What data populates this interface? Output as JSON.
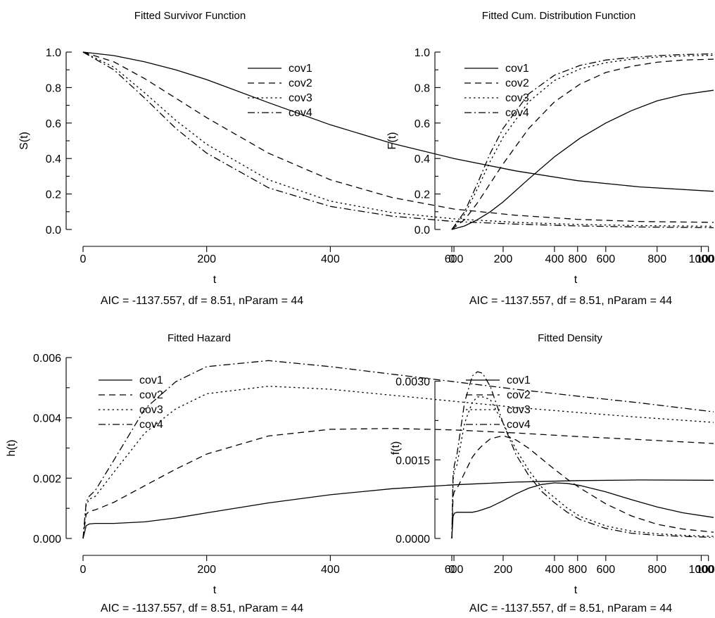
{
  "colors": {
    "background": "#ffffff",
    "ink": "#000000"
  },
  "chart_data": [
    {
      "type": "line",
      "title": "Fitted Survivor Function",
      "xlabel": "t",
      "ylabel": "S(t)",
      "footer": "AIC = -1137.557,   df = 8.51,   nParam = 44",
      "xlim": [
        0,
        1020
      ],
      "ylim": [
        0,
        1
      ],
      "xticks": [
        0,
        200,
        400,
        600,
        800,
        1000
      ],
      "yticks": [
        0,
        0.2,
        0.4,
        0.6,
        0.8,
        1.0
      ],
      "ytick_labels": [
        "0.0",
        "0.2",
        "0.4",
        "0.6",
        "0.8",
        "1.0"
      ],
      "grid": false,
      "legend": "top-right",
      "x": [
        0,
        50,
        100,
        150,
        200,
        300,
        400,
        500,
        600,
        700,
        800,
        900,
        1020
      ],
      "series": [
        {
          "name": "cov1",
          "dash": "solid",
          "values": [
            1.0,
            0.98,
            0.945,
            0.9,
            0.845,
            0.715,
            0.59,
            0.485,
            0.4,
            0.33,
            0.275,
            0.24,
            0.215
          ]
        },
        {
          "name": "cov2",
          "dash": "dash",
          "values": [
            1.0,
            0.945,
            0.85,
            0.74,
            0.63,
            0.43,
            0.28,
            0.18,
            0.115,
            0.08,
            0.057,
            0.045,
            0.04
          ]
        },
        {
          "name": "cov3",
          "dash": "dot",
          "values": [
            1.0,
            0.915,
            0.77,
            0.615,
            0.48,
            0.28,
            0.16,
            0.095,
            0.06,
            0.04,
            0.028,
            0.022,
            0.018
          ]
        },
        {
          "name": "cov4",
          "dash": "dashdot",
          "values": [
            1.0,
            0.9,
            0.74,
            0.57,
            0.43,
            0.235,
            0.13,
            0.075,
            0.045,
            0.03,
            0.02,
            0.014,
            0.01
          ]
        }
      ]
    },
    {
      "type": "line",
      "title": "Fitted Cum. Distribution Function",
      "xlabel": "t",
      "ylabel": "F(t)",
      "footer": "AIC = -1137.557,   df = 8.51,   nParam = 44",
      "xlim": [
        0,
        1020
      ],
      "ylim": [
        0,
        1
      ],
      "xticks": [
        0,
        200,
        400,
        600,
        800,
        1000
      ],
      "yticks": [
        0,
        0.2,
        0.4,
        0.6,
        0.8,
        1.0
      ],
      "ytick_labels": [
        "0.0",
        "0.2",
        "0.4",
        "0.6",
        "0.8",
        "1.0"
      ],
      "grid": false,
      "legend": "top-left",
      "x": [
        0,
        50,
        100,
        150,
        200,
        300,
        400,
        500,
        600,
        700,
        800,
        900,
        1020
      ],
      "series": [
        {
          "name": "cov1",
          "dash": "solid",
          "values": [
            0.0,
            0.02,
            0.055,
            0.1,
            0.155,
            0.285,
            0.41,
            0.515,
            0.6,
            0.67,
            0.725,
            0.76,
            0.785
          ]
        },
        {
          "name": "cov2",
          "dash": "dash",
          "values": [
            0.0,
            0.055,
            0.15,
            0.26,
            0.37,
            0.57,
            0.72,
            0.82,
            0.885,
            0.92,
            0.943,
            0.955,
            0.96
          ]
        },
        {
          "name": "cov3",
          "dash": "dot",
          "values": [
            0.0,
            0.085,
            0.23,
            0.385,
            0.52,
            0.72,
            0.84,
            0.905,
            0.94,
            0.96,
            0.972,
            0.978,
            0.982
          ]
        },
        {
          "name": "cov4",
          "dash": "dashdot",
          "values": [
            0.0,
            0.1,
            0.26,
            0.43,
            0.57,
            0.765,
            0.87,
            0.925,
            0.955,
            0.97,
            0.98,
            0.986,
            0.99
          ]
        }
      ]
    },
    {
      "type": "line",
      "title": "Fitted Hazard",
      "xlabel": "t",
      "ylabel": "h(t)",
      "footer": "AIC = -1137.557,   df = 8.51,   nParam = 44",
      "xlim": [
        0,
        1020
      ],
      "ylim": [
        0,
        0.006
      ],
      "xticks": [
        0,
        200,
        400,
        600,
        800,
        1000
      ],
      "yticks": [
        0,
        0.002,
        0.004,
        0.006
      ],
      "ytick_labels": [
        "0.000",
        "0.002",
        "0.004",
        "0.006"
      ],
      "grid": false,
      "legend": "top-left",
      "x": [
        0,
        5,
        10,
        20,
        50,
        100,
        150,
        200,
        300,
        400,
        500,
        600,
        700,
        800,
        900,
        1020
      ],
      "series": [
        {
          "name": "cov1",
          "dash": "solid",
          "values": [
            0.0,
            0.00042,
            0.00048,
            0.0005,
            0.0005,
            0.00055,
            0.00068,
            0.00085,
            0.00118,
            0.00145,
            0.00165,
            0.00178,
            0.00187,
            0.00192,
            0.00194,
            0.00193
          ]
        },
        {
          "name": "cov2",
          "dash": "dash",
          "values": [
            0.0,
            0.0008,
            0.0009,
            0.00095,
            0.0012,
            0.00175,
            0.0023,
            0.0028,
            0.0034,
            0.00362,
            0.00365,
            0.0036,
            0.0035,
            0.00338,
            0.00328,
            0.00315
          ]
        },
        {
          "name": "cov3",
          "dash": "dot",
          "values": [
            0.0,
            0.0011,
            0.0013,
            0.0014,
            0.0022,
            0.0035,
            0.0043,
            0.0048,
            0.00505,
            0.00495,
            0.00475,
            0.00455,
            0.00435,
            0.00418,
            0.00402,
            0.00385
          ]
        },
        {
          "name": "cov4",
          "dash": "dashdot",
          "values": [
            0.0,
            0.0012,
            0.0014,
            0.0016,
            0.0026,
            0.0043,
            0.0052,
            0.0057,
            0.0059,
            0.0057,
            0.00545,
            0.0052,
            0.00495,
            0.00472,
            0.0045,
            0.0042
          ]
        }
      ]
    },
    {
      "type": "line",
      "title": "Fitted Density",
      "xlabel": "t",
      "ylabel": "f(t)",
      "footer": "AIC = -1137.557,   df = 8.51,   nParam = 44",
      "xlim": [
        0,
        1020
      ],
      "ylim": [
        0,
        0.00345
      ],
      "xticks": [
        0,
        200,
        400,
        600,
        800,
        1000
      ],
      "yticks": [
        0,
        0.0015,
        0.003
      ],
      "ytick_labels": [
        "0.0000",
        "0.0015",
        "0.0030"
      ],
      "grid": false,
      "legend": "top-left",
      "x": [
        0,
        5,
        10,
        20,
        50,
        80,
        100,
        120,
        150,
        200,
        250,
        300,
        350,
        400,
        450,
        500,
        600,
        700,
        800,
        900,
        1020
      ],
      "series": [
        {
          "name": "cov1",
          "dash": "solid",
          "values": [
            0.0,
            0.00042,
            0.00048,
            0.0005,
            0.0005,
            0.0005,
            0.00052,
            0.00055,
            0.0006,
            0.00072,
            0.00085,
            0.00096,
            0.00103,
            0.00106,
            0.00105,
            0.00101,
            0.00089,
            0.00074,
            0.0006,
            0.00049,
            0.0004
          ]
        },
        {
          "name": "cov2",
          "dash": "dash",
          "values": [
            0.0,
            0.0008,
            0.0009,
            0.00095,
            0.00125,
            0.00155,
            0.00168,
            0.00178,
            0.0019,
            0.00196,
            0.00188,
            0.00172,
            0.00152,
            0.00132,
            0.00113,
            0.00096,
            0.00066,
            0.00043,
            0.00027,
            0.00018,
            0.00012
          ]
        },
        {
          "name": "cov3",
          "dash": "dot",
          "values": [
            0.0,
            0.0011,
            0.0013,
            0.0014,
            0.0022,
            0.0026,
            0.0027,
            0.0027,
            0.00265,
            0.0022,
            0.0017,
            0.0013,
            0.00098,
            0.00078,
            0.00058,
            0.00042,
            0.00024,
            0.00014,
            9e-05,
            6e-05,
            4e-05
          ]
        },
        {
          "name": "cov4",
          "dash": "dashdot",
          "values": [
            0.0,
            0.0012,
            0.0014,
            0.0016,
            0.0026,
            0.0031,
            0.00318,
            0.00315,
            0.0029,
            0.0022,
            0.0016,
            0.0012,
            0.0009,
            0.00068,
            0.0005,
            0.00036,
            0.00019,
            0.0001,
            6e-05,
            4e-05,
            2e-05
          ]
        }
      ]
    }
  ]
}
